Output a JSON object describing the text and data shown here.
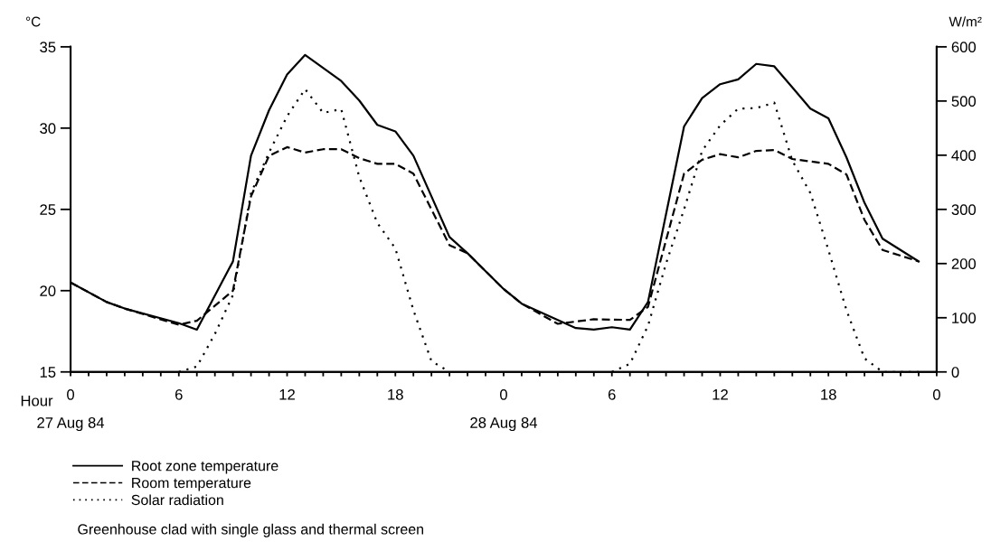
{
  "chart_data": {
    "type": "line",
    "xlabel": "Hour",
    "ylabel": "°C",
    "y2label": "W/m²",
    "xlim": [
      "1984-08-27T00:00",
      "1984-08-29T00:00"
    ],
    "xticks": [
      {
        "value": "1984-08-27T00:00",
        "label": "0\n\n27 Aug 84"
      },
      {
        "value": "1984-08-27T01:00",
        "label": null
      },
      {
        "value": "1984-08-27T02:00",
        "label": null
      },
      {
        "value": "1984-08-27T03:00",
        "label": null
      },
      {
        "value": "1984-08-27T04:00",
        "label": null
      },
      {
        "value": "1984-08-27T05:00",
        "label": null
      },
      {
        "value": "1984-08-27T06:00",
        "label": "6"
      },
      {
        "value": "1984-08-27T07:00",
        "label": null
      },
      {
        "value": "1984-08-27T08:00",
        "label": null
      },
      {
        "value": "1984-08-27T09:00",
        "label": null
      },
      {
        "value": "1984-08-27T10:00",
        "label": null
      },
      {
        "value": "1984-08-27T11:00",
        "label": null
      },
      {
        "value": "1984-08-27T12:00",
        "label": "12"
      },
      {
        "value": "1984-08-27T13:00",
        "label": null
      },
      {
        "value": "1984-08-27T14:00",
        "label": null
      },
      {
        "value": "1984-08-27T15:00",
        "label": null
      },
      {
        "value": "1984-08-27T16:00",
        "label": null
      },
      {
        "value": "1984-08-27T17:00",
        "label": null
      },
      {
        "value": "1984-08-27T18:00",
        "label": "18"
      },
      {
        "value": "1984-08-27T19:00",
        "label": null
      },
      {
        "value": "1984-08-27T20:00",
        "label": null
      },
      {
        "value": "1984-08-27T21:00",
        "label": null
      },
      {
        "value": "1984-08-27T22:00",
        "label": null
      },
      {
        "value": "1984-08-27T23:00",
        "label": null
      },
      {
        "value": "1984-08-28T00:00",
        "label": "0\n\n28 Aug 84"
      },
      {
        "value": "1984-08-28T01:00",
        "label": null
      },
      {
        "value": "1984-08-28T02:00",
        "label": null
      },
      {
        "value": "1984-08-28T03:00",
        "label": null
      },
      {
        "value": "1984-08-28T04:00",
        "label": null
      },
      {
        "value": "1984-08-28T05:00",
        "label": null
      },
      {
        "value": "1984-08-28T06:00",
        "label": "6"
      },
      {
        "value": "1984-08-28T07:00",
        "label": null
      },
      {
        "value": "1984-08-28T08:00",
        "label": null
      },
      {
        "value": "1984-08-28T09:00",
        "label": null
      },
      {
        "value": "1984-08-28T10:00",
        "label": null
      },
      {
        "value": "1984-08-28T11:00",
        "label": null
      },
      {
        "value": "1984-08-28T12:00",
        "label": "12"
      },
      {
        "value": "1984-08-28T13:00",
        "label": null
      },
      {
        "value": "1984-08-28T14:00",
        "label": null
      },
      {
        "value": "1984-08-28T15:00",
        "label": null
      },
      {
        "value": "1984-08-28T16:00",
        "label": null
      },
      {
        "value": "1984-08-28T17:00",
        "label": null
      },
      {
        "value": "1984-08-28T18:00",
        "label": "18"
      },
      {
        "value": "1984-08-28T19:00",
        "label": null
      },
      {
        "value": "1984-08-28T20:00",
        "label": null
      },
      {
        "value": "1984-08-28T21:00",
        "label": null
      },
      {
        "value": "1984-08-28T22:00",
        "label": null
      },
      {
        "value": "1984-08-28T23:00",
        "label": null
      },
      {
        "value": "1984-08-29T00:00",
        "label": "0"
      }
    ],
    "ylim": [
      15,
      35
    ],
    "yticks": [
      15,
      20,
      25,
      30,
      35
    ],
    "y2lim": [
      0,
      600
    ],
    "y2ticks": [
      0,
      100,
      200,
      300,
      400,
      500,
      600
    ],
    "legend": "bottom",
    "grid": false,
    "marker": "none",
    "series": [
      {
        "name": "Root zone temperature",
        "line_style": "solid",
        "color": "#000000",
        "x": [
          "1984-08-27T00:00",
          "1984-08-27T02:00",
          "1984-08-27T03:00",
          "1984-08-27T06:00",
          "1984-08-27T07:00",
          "1984-08-27T09:00",
          "1984-08-27T10:00",
          "1984-08-27T11:00",
          "1984-08-27T12:00",
          "1984-08-27T13:00",
          "1984-08-27T15:00",
          "1984-08-27T16:00",
          "1984-08-27T17:00",
          "1984-08-27T18:00",
          "1984-08-27T19:00",
          "1984-08-27T21:00",
          "1984-08-27T22:00",
          "1984-08-27T23:00",
          "1984-08-28T00:00",
          "1984-08-28T01:00",
          "1984-08-28T03:00",
          "1984-08-28T04:00",
          "1984-08-28T05:00",
          "1984-08-28T06:00",
          "1984-08-28T07:00",
          "1984-08-28T08:00",
          "1984-08-28T10:00",
          "1984-08-28T11:00",
          "1984-08-28T12:00",
          "1984-08-28T13:00",
          "1984-08-28T14:00",
          "1984-08-28T15:00",
          "1984-08-28T16:00",
          "1984-08-28T17:00",
          "1984-08-28T18:00",
          "1984-08-28T19:00",
          "1984-08-28T20:00",
          "1984-08-28T21:00",
          "1984-08-28T23:00"
        ],
        "values": [
          20.5,
          19.3,
          18.9,
          18.0,
          17.6,
          21.8,
          28.3,
          31.1,
          33.3,
          34.5,
          32.9,
          31.7,
          30.2,
          29.8,
          28.3,
          23.3,
          22.3,
          21.2,
          20.1,
          19.2,
          18.2,
          17.7,
          17.6,
          17.75,
          17.6,
          19.3,
          30.1,
          31.85,
          32.7,
          33.0,
          33.95,
          33.8,
          32.5,
          31.2,
          30.6,
          28.2,
          25.4,
          23.2,
          21.8
        ]
      },
      {
        "name": "Room temperature",
        "line_style": "dashed",
        "color": "#000000",
        "x": [
          "1984-08-27T00:00",
          "1984-08-27T02:00",
          "1984-08-27T03:00",
          "1984-08-27T06:00",
          "1984-08-27T07:00",
          "1984-08-27T09:00",
          "1984-08-27T10:00",
          "1984-08-27T11:00",
          "1984-08-27T12:00",
          "1984-08-27T13:00",
          "1984-08-27T14:00",
          "1984-08-27T15:00",
          "1984-08-27T16:00",
          "1984-08-27T17:00",
          "1984-08-27T18:00",
          "1984-08-27T19:00",
          "1984-08-27T21:00",
          "1984-08-27T22:00",
          "1984-08-27T23:00",
          "1984-08-28T00:00",
          "1984-08-28T01:00",
          "1984-08-28T03:00",
          "1984-08-28T05:00",
          "1984-08-28T07:00",
          "1984-08-28T08:00",
          "1984-08-28T10:00",
          "1984-08-28T11:00",
          "1984-08-28T12:00",
          "1984-08-28T13:00",
          "1984-08-28T14:00",
          "1984-08-28T15:00",
          "1984-08-28T16:00",
          "1984-08-28T18:00",
          "1984-08-28T19:00",
          "1984-08-28T20:00",
          "1984-08-28T21:00",
          "1984-08-28T23:00"
        ],
        "values": [
          20.5,
          19.3,
          18.9,
          17.9,
          18.15,
          20.0,
          25.8,
          28.3,
          28.83,
          28.5,
          28.7,
          28.7,
          28.15,
          27.8,
          27.8,
          27.2,
          22.8,
          22.3,
          21.2,
          20.1,
          19.2,
          17.96,
          18.24,
          18.2,
          19.0,
          27.2,
          28.05,
          28.4,
          28.2,
          28.6,
          28.65,
          28.1,
          27.8,
          27.15,
          24.35,
          22.5,
          21.8
        ]
      },
      {
        "name": "Solar radiation",
        "line_style": "dotted",
        "color": "#000000",
        "axis": "y2",
        "x": [
          "1984-08-27T06:00",
          "1984-08-27T07:00",
          "1984-08-27T08:00",
          "1984-08-27T09:00",
          "1984-08-27T10:00",
          "1984-08-27T11:00",
          "1984-08-27T12:00",
          "1984-08-27T13:00",
          "1984-08-27T14:00",
          "1984-08-27T15:00",
          "1984-08-27T16:00",
          "1984-08-27T17:00",
          "1984-08-27T18:00",
          "1984-08-27T19:00",
          "1984-08-27T20:00",
          "1984-08-27T21:00",
          "1984-08-28T01:00",
          "1984-08-28T06:00",
          "1984-08-28T07:00",
          "1984-08-28T08:00",
          "1984-08-28T09:00",
          "1984-08-28T10:00",
          "1984-08-28T11:00",
          "1984-08-28T12:00",
          "1984-08-28T13:00",
          "1984-08-28T14:00",
          "1984-08-28T15:00",
          "1984-08-28T16:00",
          "1984-08-28T17:00",
          "1984-08-28T18:00",
          "1984-08-28T19:00",
          "1984-08-28T20:00",
          "1984-08-28T21:00",
          "1984-08-28T23:00"
        ],
        "values": [
          0,
          10,
          70,
          142,
          330,
          405,
          472,
          522,
          478,
          485,
          360,
          275,
          228,
          114,
          20,
          0,
          null,
          0,
          15,
          85,
          200,
          300,
          408,
          455,
          486,
          487,
          497,
          390,
          330,
          225,
          114,
          25,
          0,
          0
        ]
      }
    ],
    "annotations": [
      "Greenhouse clad with single glass and thermal screen"
    ]
  }
}
